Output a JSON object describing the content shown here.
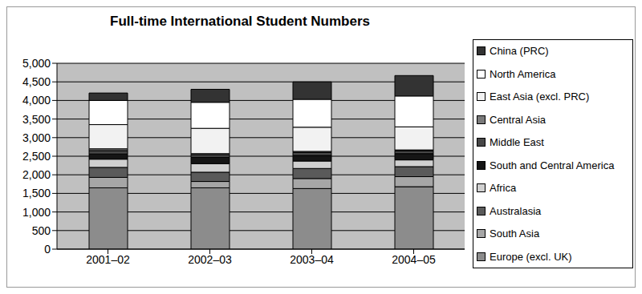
{
  "chart_data": {
    "type": "bar",
    "title": "Full-time International Student Numbers",
    "stacked": true,
    "grid": true,
    "legend": "right",
    "categories": [
      "2001–02",
      "2002–03",
      "2003–04",
      "2004–05"
    ],
    "ylim": [
      0,
      5000
    ],
    "yticks": [
      0,
      500,
      {
        "value": 1000,
        "label": "1,000"
      },
      {
        "value": 1500,
        "label": "1,500"
      },
      {
        "value": 2000,
        "label": "2,000"
      },
      {
        "value": 2500,
        "label": "2,500"
      },
      {
        "value": 3000,
        "label": "3,000"
      },
      {
        "value": 3500,
        "label": "3,500"
      },
      {
        "value": 4000,
        "label": "4,000"
      },
      {
        "value": 4500,
        "label": "4,500"
      },
      {
        "value": 5000,
        "label": "5,000"
      }
    ],
    "series": [
      {
        "name": "Europe (excl. UK)",
        "color": "#8c8c8c",
        "values": [
          1650,
          1650,
          1630,
          1680
        ]
      },
      {
        "name": "South Asia",
        "color": "#a6a6a6",
        "values": [
          280,
          170,
          270,
          270
        ]
      },
      {
        "name": "Australasia",
        "color": "#5a5a5a",
        "values": [
          270,
          250,
          270,
          270
        ]
      },
      {
        "name": "Africa",
        "color": "#d0d0d0",
        "values": [
          220,
          230,
          200,
          180
        ]
      },
      {
        "name": "South and Central America",
        "color": "#151515",
        "values": [
          140,
          170,
          150,
          170
        ]
      },
      {
        "name": "Middle East",
        "color": "#474747",
        "values": [
          90,
          70,
          80,
          70
        ]
      },
      {
        "name": "Central Asia",
        "color": "#7a7a7a",
        "values": [
          50,
          30,
          30,
          30
        ]
      },
      {
        "name": "East Asia (excl. PRC)",
        "color": "#f2f2f2",
        "values": [
          650,
          680,
          650,
          620
        ]
      },
      {
        "name": "North America",
        "color": "#ffffff",
        "values": [
          650,
          700,
          750,
          830
        ]
      },
      {
        "name": "China (PRC)",
        "color": "#333333",
        "values": [
          200,
          350,
          470,
          550
        ]
      }
    ]
  }
}
